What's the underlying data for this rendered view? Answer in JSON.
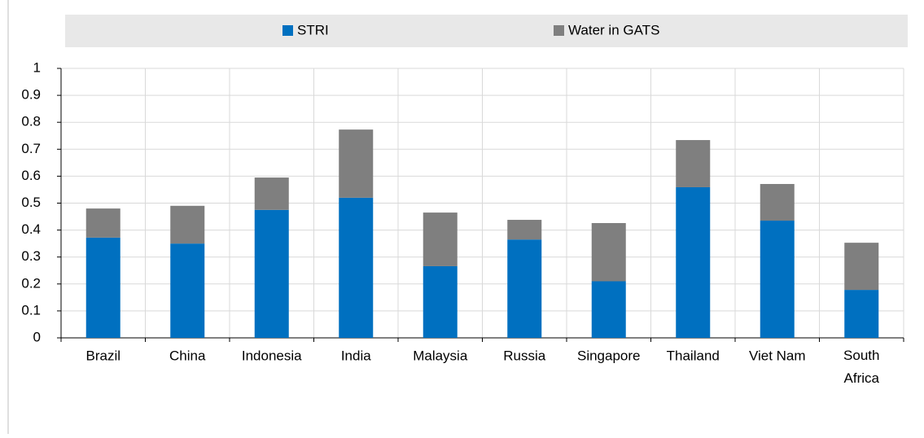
{
  "chart_data": {
    "type": "stacked_bar",
    "categories": [
      "Brazil",
      "China",
      "Indonesia",
      "India",
      "Malaysia",
      "Russia",
      "Singapore",
      "Thailand",
      "Viet Nam",
      "South Africa"
    ],
    "series": [
      {
        "name": "STRI",
        "color": "#0070c0",
        "values": [
          0.372,
          0.35,
          0.475,
          0.52,
          0.266,
          0.365,
          0.21,
          0.559,
          0.435,
          0.178
        ]
      },
      {
        "name": "Water in GATS",
        "color": "#7f7f7f",
        "values": [
          0.108,
          0.14,
          0.12,
          0.253,
          0.199,
          0.073,
          0.216,
          0.175,
          0.136,
          0.175
        ]
      }
    ],
    "ylim": [
      0,
      1
    ],
    "yticks": [
      0,
      0.1,
      0.2,
      0.3,
      0.4,
      0.5,
      0.6,
      0.7,
      0.8,
      0.9,
      1
    ],
    "grid": true,
    "legend": "top"
  }
}
